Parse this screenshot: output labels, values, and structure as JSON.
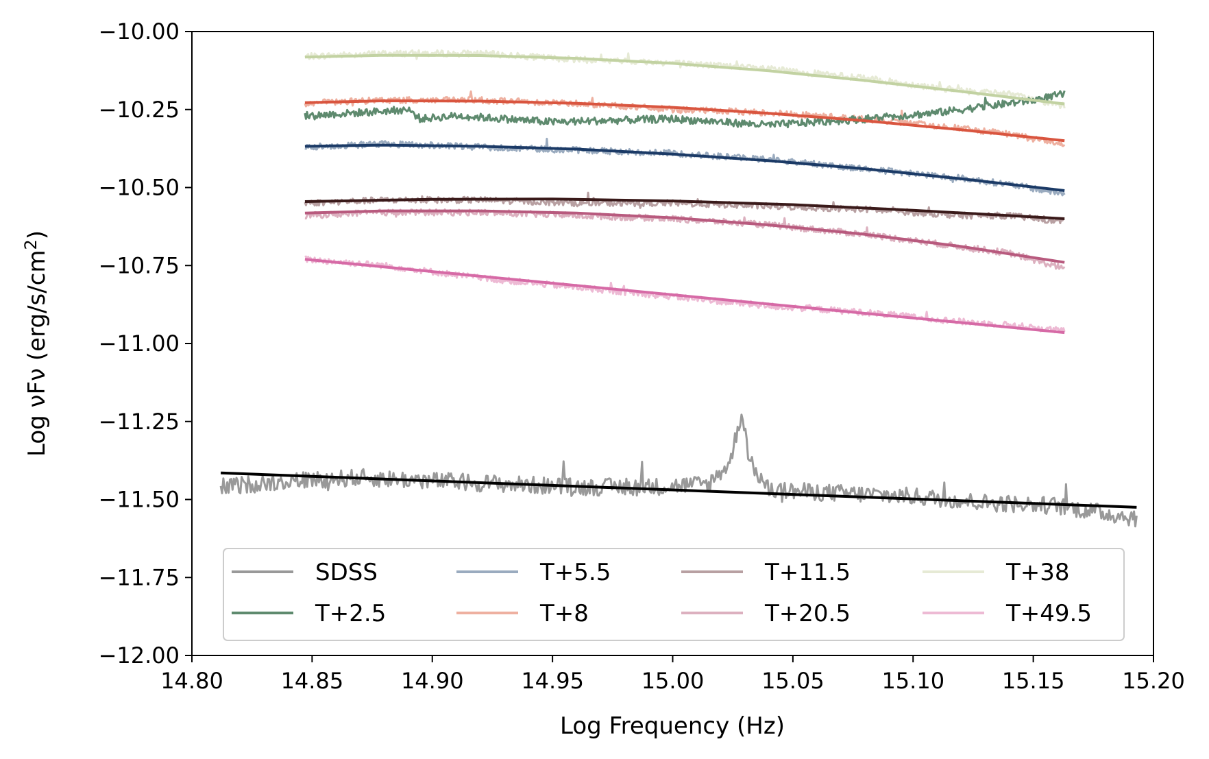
{
  "chart_data": {
    "type": "line",
    "title": "",
    "xlabel": "Log Frequency (Hz)",
    "ylabel_prefix": "Log νFν (erg/s/cm",
    "ylabel_sup": "2",
    "ylabel_suffix": ")",
    "xlim": [
      14.8,
      15.2
    ],
    "ylim": [
      -12.0,
      -10.0
    ],
    "xticks": [
      14.8,
      14.85,
      14.9,
      14.95,
      15.0,
      15.05,
      15.1,
      15.15,
      15.2
    ],
    "xtick_labels": [
      "14.80",
      "14.85",
      "14.90",
      "14.95",
      "15.00",
      "15.05",
      "15.10",
      "15.15",
      "15.20"
    ],
    "yticks": [
      -10.0,
      -10.25,
      -10.5,
      -10.75,
      -11.0,
      -11.25,
      -11.5,
      -11.75,
      -12.0
    ],
    "ytick_labels": [
      "−10.00",
      "−10.25",
      "−10.50",
      "−10.75",
      "−11.00",
      "−11.25",
      "−11.50",
      "−11.75",
      "−12.00"
    ],
    "grid": false,
    "legend_position": "lower-center",
    "legend_columns": 4,
    "series": [
      {
        "name": "SDSS",
        "color": "#999999",
        "x": [
          14.812,
          14.84,
          14.87,
          14.9,
          14.93,
          14.96,
          14.99,
          15.015,
          15.024,
          15.027,
          15.029,
          15.032,
          15.04,
          15.07,
          15.1,
          15.13,
          15.16,
          15.193
        ],
        "y": [
          -11.46,
          -11.44,
          -11.43,
          -11.44,
          -11.45,
          -11.46,
          -11.46,
          -11.45,
          -11.38,
          -11.27,
          -11.22,
          -11.38,
          -11.47,
          -11.48,
          -11.49,
          -11.51,
          -11.52,
          -11.56
        ],
        "fit_color": "#000000",
        "fit_x": [
          14.812,
          15.193
        ],
        "fit_y": [
          -11.415,
          -11.525
        ]
      },
      {
        "name": "T+2.5",
        "color": "#5e8a6e",
        "x": [
          14.847,
          14.87,
          14.89,
          14.895,
          14.91,
          14.95,
          15.0,
          15.04,
          15.08,
          15.11,
          15.13,
          15.15,
          15.163
        ],
        "y": [
          -10.27,
          -10.26,
          -10.25,
          -10.28,
          -10.27,
          -10.29,
          -10.28,
          -10.3,
          -10.28,
          -10.26,
          -10.24,
          -10.22,
          -10.2
        ],
        "fit_color": null
      },
      {
        "name": "T+5.5",
        "color": "#9aabbf",
        "x": [
          14.847,
          14.88,
          14.92,
          14.96,
          15.0,
          15.04,
          15.08,
          15.12,
          15.14,
          15.163
        ],
        "y": [
          -10.37,
          -10.36,
          -10.37,
          -10.38,
          -10.39,
          -10.41,
          -10.44,
          -10.47,
          -10.49,
          -10.52
        ],
        "fit_color": "#1b3a66",
        "fit_x": [
          14.847,
          14.88,
          14.92,
          14.96,
          15.0,
          15.04,
          15.08,
          15.12,
          15.163
        ],
        "fit_y": [
          -10.368,
          -10.364,
          -10.368,
          -10.377,
          -10.393,
          -10.414,
          -10.44,
          -10.472,
          -10.51
        ]
      },
      {
        "name": "T+8",
        "color": "#eeb0a0",
        "x": [
          14.847,
          14.88,
          14.92,
          14.96,
          15.0,
          15.04,
          15.08,
          15.12,
          15.14,
          15.163
        ],
        "y": [
          -10.23,
          -10.22,
          -10.22,
          -10.23,
          -10.25,
          -10.26,
          -10.28,
          -10.31,
          -10.33,
          -10.36
        ],
        "fit_color": "#d9553f",
        "fit_x": [
          14.847,
          14.88,
          14.92,
          14.96,
          15.0,
          15.04,
          15.08,
          15.12,
          15.163
        ],
        "fit_y": [
          -10.228,
          -10.222,
          -10.223,
          -10.23,
          -10.243,
          -10.262,
          -10.286,
          -10.315,
          -10.35
        ]
      },
      {
        "name": "T+11.5",
        "color": "#b8a0a2",
        "x": [
          14.847,
          14.88,
          14.92,
          14.96,
          15.0,
          15.04,
          15.08,
          15.12,
          15.14,
          15.163
        ],
        "y": [
          -10.55,
          -10.54,
          -10.54,
          -10.55,
          -10.55,
          -10.56,
          -10.57,
          -10.59,
          -10.59,
          -10.61
        ],
        "fit_color": "#3a1a1a",
        "fit_x": [
          14.847,
          14.9,
          14.95,
          15.0,
          15.05,
          15.1,
          15.163
        ],
        "fit_y": [
          -10.545,
          -10.538,
          -10.537,
          -10.543,
          -10.555,
          -10.573,
          -10.6
        ]
      },
      {
        "name": "T+20.5",
        "color": "#dcb0bf",
        "x": [
          14.847,
          14.88,
          14.92,
          14.96,
          15.0,
          15.04,
          15.08,
          15.12,
          15.14,
          15.163
        ],
        "y": [
          -10.59,
          -10.58,
          -10.58,
          -10.59,
          -10.6,
          -10.62,
          -10.65,
          -10.69,
          -10.71,
          -10.76
        ],
        "fit_color": "#b85a7e",
        "fit_x": [
          14.847,
          14.88,
          14.92,
          14.96,
          15.0,
          15.04,
          15.08,
          15.12,
          15.163
        ],
        "fit_y": [
          -10.582,
          -10.575,
          -10.575,
          -10.582,
          -10.597,
          -10.62,
          -10.65,
          -10.689,
          -10.74
        ]
      },
      {
        "name": "T+38",
        "color": "#e6ead5",
        "x": [
          14.847,
          14.88,
          14.92,
          14.96,
          15.0,
          15.04,
          15.08,
          15.12,
          15.14,
          15.163
        ],
        "y": [
          -10.08,
          -10.07,
          -10.07,
          -10.09,
          -10.1,
          -10.12,
          -10.15,
          -10.19,
          -10.2,
          -10.24
        ],
        "fit_color": "#c2d2a2",
        "fit_x": [
          14.847,
          14.88,
          14.92,
          14.96,
          15.0,
          15.04,
          15.08,
          15.12,
          15.163
        ],
        "fit_y": [
          -10.082,
          -10.076,
          -10.077,
          -10.086,
          -10.102,
          -10.126,
          -10.157,
          -10.192,
          -10.232
        ]
      },
      {
        "name": "T+49.5",
        "color": "#edbad4",
        "x": [
          14.847,
          14.88,
          14.92,
          14.96,
          15.0,
          15.04,
          15.08,
          15.12,
          15.14,
          15.163
        ],
        "y": [
          -10.73,
          -10.75,
          -10.79,
          -10.82,
          -10.85,
          -10.88,
          -10.9,
          -10.93,
          -10.94,
          -10.96
        ],
        "fit_color": "#d66aa6",
        "fit_x": [
          14.847,
          15.163
        ],
        "fit_y": [
          -10.73,
          -10.965
        ]
      }
    ],
    "legend_order": [
      "SDSS",
      "T+5.5",
      "T+11.5",
      "T+38",
      "T+2.5",
      "T+8",
      "T+20.5",
      "T+49.5"
    ]
  }
}
